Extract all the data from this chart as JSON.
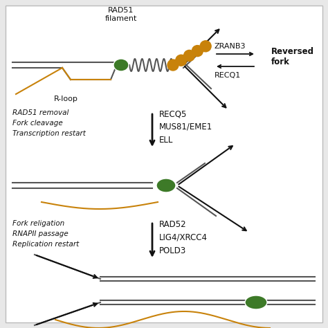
{
  "bg_color": "#e8e8e8",
  "panel_bg": "#ffffff",
  "green_color": "#3d7a28",
  "orange_color": "#c8820a",
  "gray_color": "#555555",
  "dark_color": "#111111",
  "text_color": "#111111",
  "panel1_label_left": "RAD51 removal\nFork cleavage\nTranscription restart",
  "panel1_label_right": "RECQ5\nMUS81/EME1\nELL",
  "panel2_label_left": "Fork religation\nRNAPII passage\nReplication restart",
  "panel2_label_right": "RAD52\nLIG4/XRCC4\nPOLD3",
  "zranb3_label": "ZRANB3",
  "recq1_label": "RECQ1",
  "reversed_fork_label": "Reversed\nfork",
  "rad51_filament_label": "RAD51\nfilament",
  "rloop_label": "R-loop"
}
